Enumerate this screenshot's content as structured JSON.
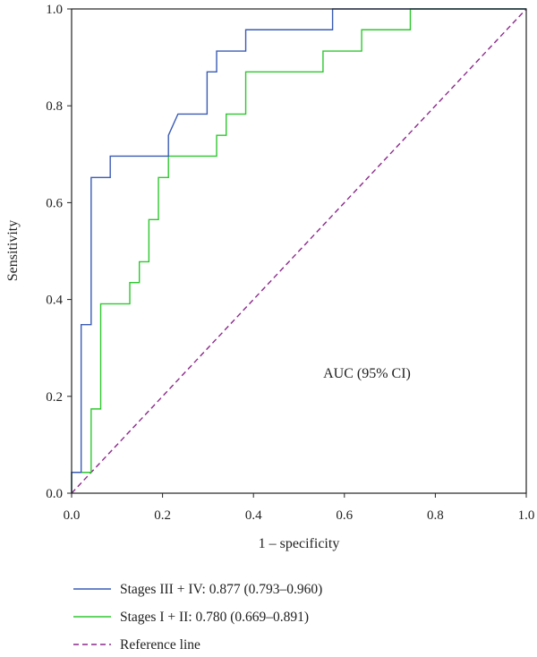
{
  "chart_data": {
    "type": "line",
    "title": "",
    "xlabel": "1 – specificity",
    "ylabel": "Sensitivity",
    "xlim": [
      0,
      1
    ],
    "ylim": [
      0,
      1
    ],
    "x_ticks": [
      "0.0",
      "0.2",
      "0.4",
      "0.6",
      "0.8",
      "1.0"
    ],
    "y_ticks": [
      "0.0",
      "0.2",
      "0.4",
      "0.6",
      "0.8",
      "1.0"
    ],
    "annotation": "AUC (95% CI)",
    "grid": false,
    "legend_position": "bottom",
    "series": [
      {
        "name": "Stages III + IV: 0.877 (0.793–0.960)",
        "color": "#3a5bb5",
        "style": "solid",
        "points": [
          [
            0,
            0
          ],
          [
            0,
            0.043
          ],
          [
            0.021,
            0.043
          ],
          [
            0.021,
            0.348
          ],
          [
            0.043,
            0.348
          ],
          [
            0.043,
            0.652
          ],
          [
            0.085,
            0.652
          ],
          [
            0.085,
            0.696
          ],
          [
            0.213,
            0.696
          ],
          [
            0.213,
            0.739
          ],
          [
            0.234,
            0.783
          ],
          [
            0.298,
            0.783
          ],
          [
            0.298,
            0.87
          ],
          [
            0.319,
            0.87
          ],
          [
            0.319,
            0.913
          ],
          [
            0.383,
            0.913
          ],
          [
            0.383,
            0.957
          ],
          [
            0.574,
            0.957
          ],
          [
            0.574,
            1.0
          ],
          [
            1.0,
            1.0
          ]
        ]
      },
      {
        "name": "Stages I + II: 0.780 (0.669–0.891)",
        "color": "#2ec72e",
        "style": "solid",
        "points": [
          [
            0,
            0
          ],
          [
            0,
            0.043
          ],
          [
            0.043,
            0.043
          ],
          [
            0.043,
            0.174
          ],
          [
            0.064,
            0.174
          ],
          [
            0.064,
            0.391
          ],
          [
            0.128,
            0.391
          ],
          [
            0.128,
            0.435
          ],
          [
            0.149,
            0.435
          ],
          [
            0.149,
            0.478
          ],
          [
            0.17,
            0.478
          ],
          [
            0.17,
            0.565
          ],
          [
            0.191,
            0.565
          ],
          [
            0.191,
            0.652
          ],
          [
            0.213,
            0.652
          ],
          [
            0.213,
            0.696
          ],
          [
            0.319,
            0.696
          ],
          [
            0.319,
            0.739
          ],
          [
            0.34,
            0.739
          ],
          [
            0.34,
            0.783
          ],
          [
            0.383,
            0.783
          ],
          [
            0.383,
            0.87
          ],
          [
            0.553,
            0.87
          ],
          [
            0.553,
            0.913
          ],
          [
            0.638,
            0.913
          ],
          [
            0.638,
            0.957
          ],
          [
            0.745,
            0.957
          ],
          [
            0.745,
            1.0
          ],
          [
            1.0,
            1.0
          ]
        ]
      },
      {
        "name": "Reference line",
        "color": "#8b2a8b",
        "style": "dashed",
        "points": [
          [
            0,
            0
          ],
          [
            1,
            1
          ]
        ]
      }
    ]
  }
}
